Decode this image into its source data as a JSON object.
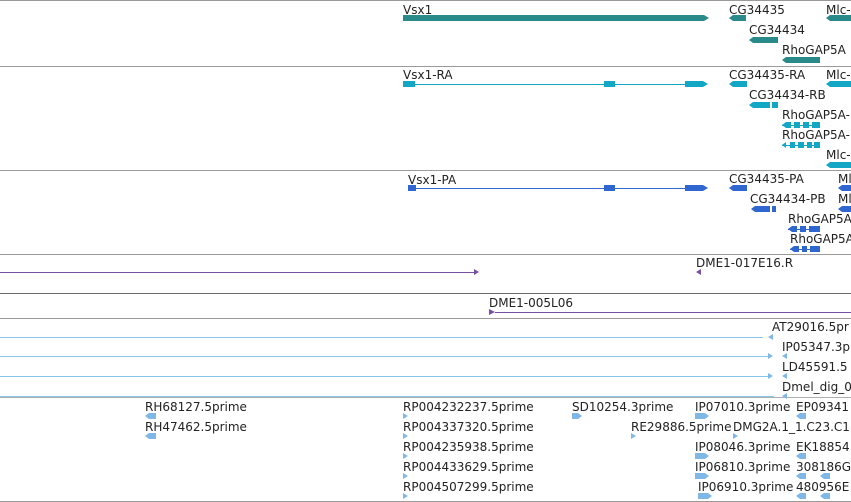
{
  "colors": {
    "gene": "#2a8a8a",
    "transcript": "#12a7c4",
    "protein": "#2f66d0",
    "clone": "#7a4fa3",
    "est_line": "#88c4e8",
    "est_box": "#7fb8e6",
    "divider": "#9a9a9a"
  },
  "tracks": {
    "genes": [
      {
        "label": "Vsx1"
      },
      {
        "label": "CG34435"
      },
      {
        "label": "Mlc-"
      },
      {
        "label": "CG34434"
      },
      {
        "label": "RhoGAP5A"
      }
    ],
    "transcripts": [
      {
        "label": "Vsx1-RA"
      },
      {
        "label": "CG34435-RA"
      },
      {
        "label": "Mlc-"
      },
      {
        "label": "CG34434-RB"
      },
      {
        "label": "RhoGAP5A-"
      },
      {
        "label": "RhoGAP5A-"
      },
      {
        "label": "Mlc-"
      }
    ],
    "proteins": [
      {
        "label": "Vsx1-PA"
      },
      {
        "label": "CG34435-PA"
      },
      {
        "label": "Ml"
      },
      {
        "label": "CG34434-PB"
      },
      {
        "label": "Ml"
      },
      {
        "label": "RhoGAP5A"
      },
      {
        "label": "RhoGAP5A"
      }
    ],
    "clone_a": [
      {
        "label": "DME1-017E16.R"
      }
    ],
    "clone_b": [
      {
        "label": "DME1-005L06"
      }
    ],
    "cdna": [
      {
        "label": "AT29016.5pr"
      },
      {
        "label": "IP05347.3p"
      },
      {
        "label": "LD45591.5"
      },
      {
        "label": "Dmel_dig_0"
      }
    ],
    "ests": [
      {
        "label": "RH68127.5prime"
      },
      {
        "label": "RH47462.5prime"
      },
      {
        "label": "RP004232237.5prime"
      },
      {
        "label": "RP004337320.5prime"
      },
      {
        "label": "RP004235938.5prime"
      },
      {
        "label": "RP004433629.5prime"
      },
      {
        "label": "RP004507299.5prime"
      },
      {
        "label": "SD10254.3prime"
      },
      {
        "label": "RE29886.5prime"
      },
      {
        "label": "IP07010.3prime"
      },
      {
        "label": "DMG2A.1_1.C23.C1"
      },
      {
        "label": "IP08046.3prime"
      },
      {
        "label": "IP06810.3prime"
      },
      {
        "label": "IP06910.3prime"
      },
      {
        "label": "EP09341"
      },
      {
        "label": "EK18854"
      },
      {
        "label": "308186G"
      },
      {
        "label": "480956E"
      }
    ]
  }
}
